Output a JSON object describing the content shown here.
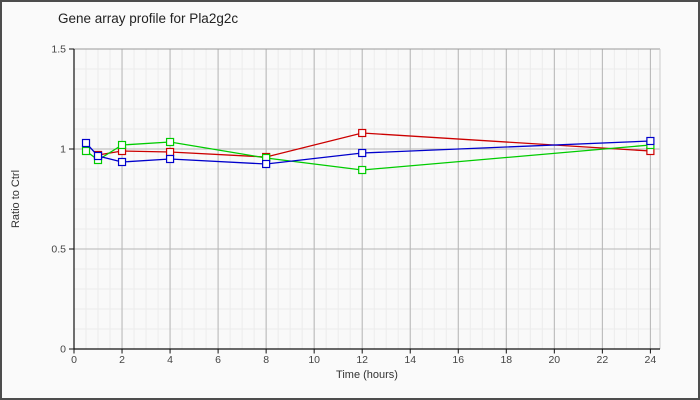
{
  "window": {
    "title": "Gene array profile for Pla2g2c"
  },
  "chart_data": {
    "type": "line",
    "title": "Gene array profile for Pla2g2c",
    "xlabel": "Time (hours)",
    "ylabel": "Ratio to Ctrl",
    "xlim": [
      0,
      24.4
    ],
    "ylim": [
      0,
      1.5
    ],
    "grid": true,
    "legend": false,
    "marker": "square",
    "x_minor_step": 0.5,
    "y_minor_step": 0.1,
    "x_ticks": {
      "values": [
        0,
        2,
        4,
        6,
        8,
        10,
        12,
        14,
        16,
        18,
        20,
        22,
        24
      ],
      "labels": [
        "0",
        "2",
        "4",
        "6",
        "8",
        "10",
        "12",
        "14",
        "16",
        "18",
        "20",
        "22",
        "24"
      ]
    },
    "y_ticks": {
      "values": [
        0,
        0.5,
        1,
        1.5
      ],
      "labels": [
        "0",
        "0.5",
        "1",
        "1.5"
      ]
    },
    "series": [
      {
        "name": "red",
        "color": "#cc0000",
        "x": [
          1,
          2,
          4,
          8,
          12,
          24
        ],
        "y": [
          0.97,
          0.99,
          0.985,
          0.96,
          1.08,
          0.99
        ]
      },
      {
        "name": "green",
        "color": "#00cc00",
        "x": [
          0.5,
          1,
          2,
          4,
          8,
          12,
          24
        ],
        "y": [
          0.99,
          0.945,
          1.02,
          1.035,
          0.955,
          0.895,
          1.02
        ]
      },
      {
        "name": "blue",
        "color": "#0000cc",
        "x": [
          0.5,
          1,
          2,
          4,
          8,
          12,
          24
        ],
        "y": [
          1.03,
          0.965,
          0.935,
          0.95,
          0.925,
          0.98,
          1.04
        ]
      }
    ]
  }
}
